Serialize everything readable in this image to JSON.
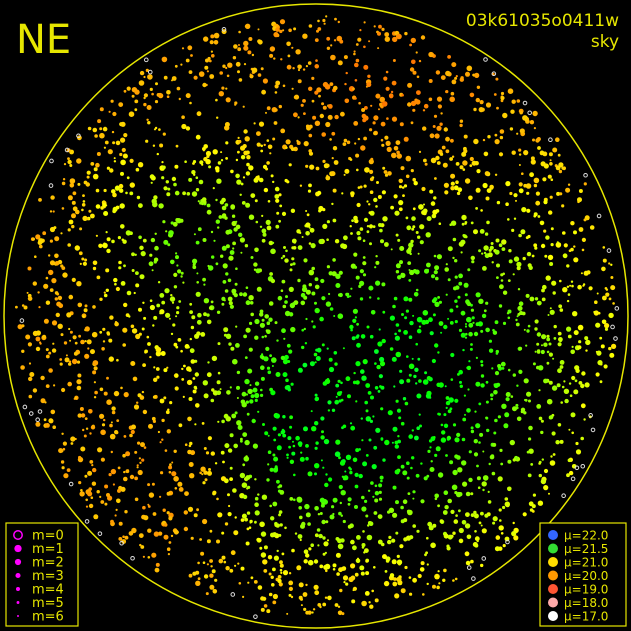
{
  "title": "NE",
  "image_id": "03k61035o0411w",
  "band": "sky",
  "magnitude_legend": {
    "items": [
      "m=0",
      "m=1",
      "m=2",
      "m=3",
      "m=4",
      "m=5",
      "m=6"
    ],
    "color": "#ff00ff"
  },
  "brightness_legend": {
    "items": [
      {
        "label": "μ=22.0",
        "color": "#3366ff"
      },
      {
        "label": "μ=21.5",
        "color": "#33dd33"
      },
      {
        "label": "μ=21.0",
        "color": "#ffdd00"
      },
      {
        "label": "μ=20.0",
        "color": "#ff9900"
      },
      {
        "label": "μ=19.0",
        "color": "#ff5533"
      },
      {
        "label": "μ=18.0",
        "color": "#ffaaaa"
      },
      {
        "label": "μ=17.0",
        "color": "#ffffff"
      }
    ]
  }
}
